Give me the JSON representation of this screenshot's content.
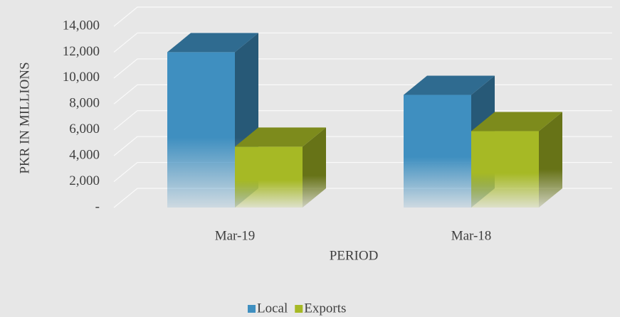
{
  "chart_data": {
    "type": "bar3d",
    "y_axis_label": "PKR IN MILLIONS",
    "x_axis_label": "PERIOD",
    "categories": [
      "Mar-19",
      "Mar-18"
    ],
    "series": [
      {
        "name": "Local",
        "color": "#3f8fc0",
        "values": [
          12000,
          8700
        ]
      },
      {
        "name": "Exports",
        "color": "#a6b925",
        "values": [
          4700,
          5900
        ]
      }
    ],
    "ylim": [
      0,
      14000
    ],
    "yticks": [
      {
        "value": 0,
        "label": "-"
      },
      {
        "value": 2000,
        "label": "2,000"
      },
      {
        "value": 4000,
        "label": "4,000"
      },
      {
        "value": 6000,
        "label": "6,000"
      },
      {
        "value": 8000,
        "label": "8,000"
      },
      {
        "value": 10000,
        "label": "10,000"
      },
      {
        "value": 12000,
        "label": "12,000"
      },
      {
        "value": 14000,
        "label": "14,000"
      }
    ],
    "grid": true,
    "legend": "bottom"
  }
}
